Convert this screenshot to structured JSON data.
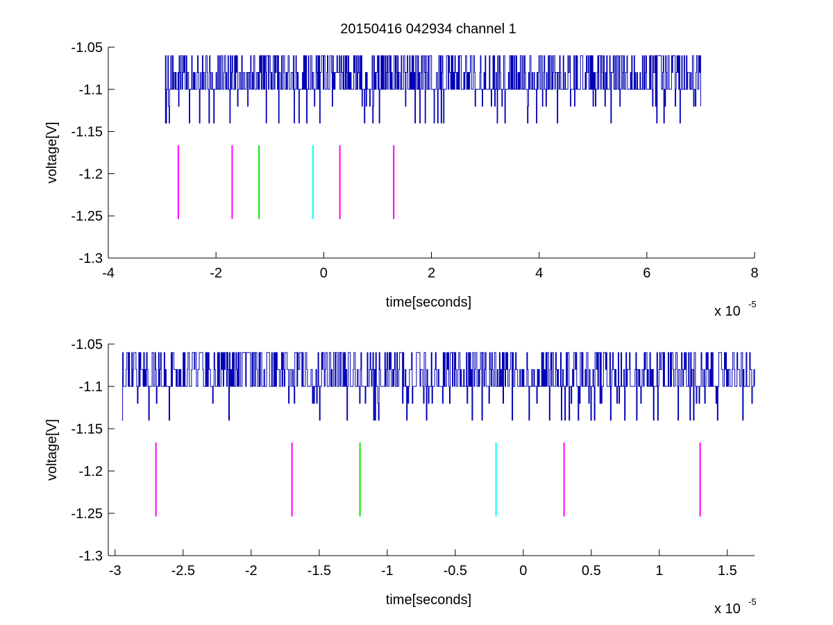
{
  "figure": {
    "title": "20150416 042934 channel 1",
    "background": "#ffffff"
  },
  "chart_data": [
    {
      "type": "line",
      "title": "20150416 042934 channel 1",
      "xlabel": "time[seconds]",
      "ylabel": "voltage[V]",
      "x_multiplier": {
        "base": "x 10",
        "exponent": "-5"
      },
      "xlim": [
        -4,
        8
      ],
      "ylim": [
        -1.3,
        -1.05
      ],
      "xticks": [
        "-4",
        "-2",
        "0",
        "2",
        "4",
        "6",
        "8"
      ],
      "yticks": [
        "-1.05",
        "-1.1",
        "-1.15",
        "-1.2",
        "-1.25",
        "-1.3"
      ],
      "grid": false,
      "series": [
        {
          "style": "step-signal",
          "color": "#0000b4",
          "x_range": [
            -2.95,
            7.0
          ],
          "baseline": -1.1,
          "levels": [
            -1.14,
            -1.1,
            -1.08,
            -1.06
          ],
          "note_density": "noisy digitized trace between -1.14 and -1.06 V"
        }
      ],
      "markers": [
        {
          "x": -2.7,
          "y": [
            -1.2537,
            -1.1663
          ],
          "color": "#ff00ff"
        },
        {
          "x": -1.7,
          "y": [
            -1.2537,
            -1.1663
          ],
          "color": "#ff00ff"
        },
        {
          "x": -1.2,
          "y": [
            -1.2537,
            -1.1663
          ],
          "color": "#00e600"
        },
        {
          "x": -0.2,
          "y": [
            -1.2537,
            -1.1663
          ],
          "color": "#00ffff"
        },
        {
          "x": 0.3,
          "y": [
            -1.2537,
            -1.1663
          ],
          "color": "#ff00ff"
        },
        {
          "x": 1.3,
          "y": [
            -1.2537,
            -1.1663
          ],
          "color": "#ff00ff"
        }
      ]
    },
    {
      "type": "line",
      "title": "",
      "xlabel": "time[seconds]",
      "ylabel": "voltage[V]",
      "x_multiplier": {
        "base": "x 10",
        "exponent": "-5"
      },
      "xlim": [
        -3.05,
        1.7
      ],
      "ylim": [
        -1.3,
        -1.05
      ],
      "xticks": [
        "-3",
        "-2.5",
        "-2",
        "-1.5",
        "-1",
        "-0.5",
        "0",
        "0.5",
        "1",
        "1.5"
      ],
      "yticks": [
        "-1.05",
        "-1.1",
        "-1.15",
        "-1.2",
        "-1.25",
        "-1.3"
      ],
      "grid": false,
      "series": [
        {
          "style": "step-signal",
          "color": "#0000b4",
          "x_range": [
            -2.95,
            1.7
          ],
          "baseline": -1.1,
          "levels": [
            -1.14,
            -1.12,
            -1.1,
            -1.08,
            -1.06
          ],
          "note_density": "zoomed segment of the same trace"
        }
      ],
      "markers": [
        {
          "x": -2.7,
          "y": [
            -1.2537,
            -1.1663
          ],
          "color": "#ff00ff"
        },
        {
          "x": -1.7,
          "y": [
            -1.2537,
            -1.1663
          ],
          "color": "#ff00ff"
        },
        {
          "x": -1.2,
          "y": [
            -1.2537,
            -1.1663
          ],
          "color": "#00e600"
        },
        {
          "x": -0.2,
          "y": [
            -1.2537,
            -1.1663
          ],
          "color": "#00ffff"
        },
        {
          "x": 0.3,
          "y": [
            -1.2537,
            -1.1663
          ],
          "color": "#ff00ff"
        },
        {
          "x": 1.3,
          "y": [
            -1.2537,
            -1.1663
          ],
          "color": "#ff00ff"
        }
      ]
    }
  ]
}
